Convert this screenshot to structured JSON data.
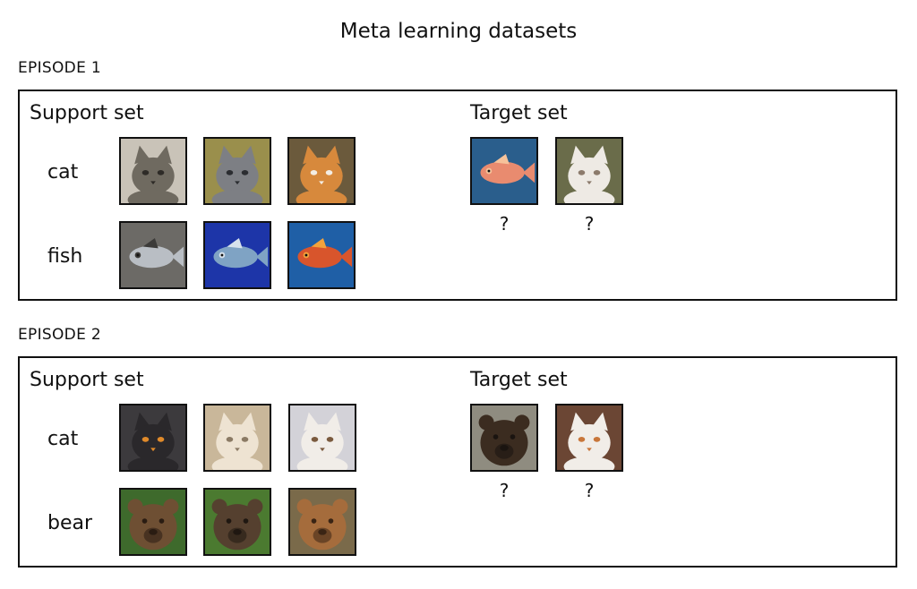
{
  "title": "Meta learning datasets",
  "episodes": [
    {
      "label": "EPISODE 1",
      "support_title": "Support set",
      "target_title": "Target set",
      "classes": [
        {
          "name": "cat",
          "images": [
            {
              "icon": "tabby-cat-icon",
              "bg": "#c9c3b8",
              "fg": "#6f6a60",
              "accent": "#2e2b27"
            },
            {
              "icon": "gray-cat-icon",
              "bg": "#9a8f4c",
              "fg": "#7d7f84",
              "accent": "#2b2d31"
            },
            {
              "icon": "orange-cat-icon",
              "bg": "#6b5a3c",
              "fg": "#d7893c",
              "accent": "#f3ede4"
            }
          ]
        },
        {
          "name": "fish",
          "images": [
            {
              "icon": "gray-fish-icon",
              "bg": "#6c6a66",
              "fg": "#b9bec4",
              "accent": "#3c3b39"
            },
            {
              "icon": "blue-fish-icon",
              "bg": "#1d35a8",
              "fg": "#7fa3c4",
              "accent": "#d7e2ec"
            },
            {
              "icon": "red-fish-icon",
              "bg": "#1f5fa6",
              "fg": "#d8552c",
              "accent": "#f2a23c"
            }
          ]
        }
      ],
      "targets": [
        {
          "icon": "pink-fish-icon",
          "bg": "#2a5e8c",
          "fg": "#e98b6f",
          "accent": "#f6c29a",
          "label": "?"
        },
        {
          "icon": "white-cat-icon",
          "bg": "#6a6c4a",
          "fg": "#eeeae4",
          "accent": "#8c7b6c",
          "label": "?"
        }
      ]
    },
    {
      "label": "EPISODE 2",
      "support_title": "Support set",
      "target_title": "Target set",
      "classes": [
        {
          "name": "cat",
          "images": [
            {
              "icon": "black-cat-icon",
              "bg": "#3c3a3d",
              "fg": "#2a282b",
              "accent": "#e08a2a"
            },
            {
              "icon": "cream-cat-icon",
              "bg": "#c9b79a",
              "fg": "#eee3d2",
              "accent": "#8b7a64"
            },
            {
              "icon": "calico-cat-icon",
              "bg": "#d3d2d8",
              "fg": "#f1ede8",
              "accent": "#7a5a3e"
            }
          ]
        },
        {
          "name": "bear",
          "images": [
            {
              "icon": "brown-bear-icon",
              "bg": "#3e6a2c",
              "fg": "#6e4f33",
              "accent": "#2a1c12"
            },
            {
              "icon": "grizzly-bear-icon",
              "bg": "#4b7a30",
              "fg": "#55402f",
              "accent": "#1f1711"
            },
            {
              "icon": "tan-bear-icon",
              "bg": "#7a6a4a",
              "fg": "#a56c3c",
              "accent": "#3a2414"
            }
          ]
        }
      ],
      "targets": [
        {
          "icon": "bear-icon",
          "bg": "#8f8c80",
          "fg": "#3b2c20",
          "accent": "#1a1410",
          "label": "?"
        },
        {
          "icon": "ginger-cat-icon",
          "bg": "#6b4634",
          "fg": "#f1ede8",
          "accent": "#c8763a",
          "label": "?"
        }
      ]
    }
  ]
}
